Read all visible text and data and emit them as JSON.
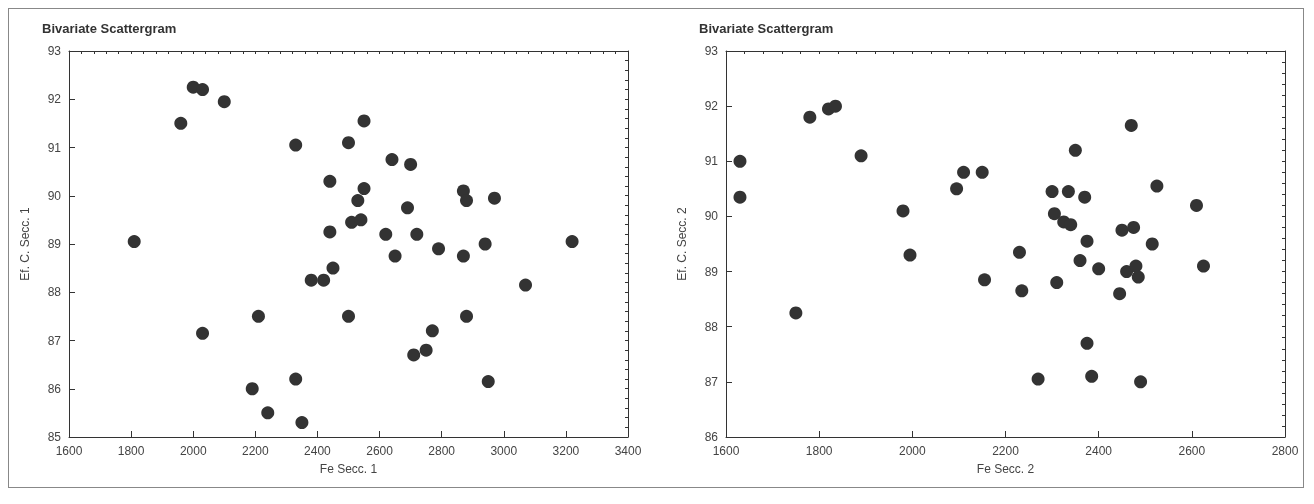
{
  "chart_data": [
    {
      "type": "scatter",
      "title": "Bivariate Scattergram",
      "xlabel": "Fe Secc. 1",
      "ylabel": "Ef. C. Secc. 1",
      "xlim": [
        1600,
        3400
      ],
      "xticks": [
        1600,
        1800,
        2000,
        2200,
        2400,
        2600,
        2800,
        3000,
        3200,
        3400
      ],
      "ylim": [
        85,
        93
      ],
      "yticks": [
        85,
        86,
        87,
        88,
        89,
        90,
        91,
        92,
        93
      ],
      "grid": false,
      "marker": "circle",
      "series": [
        {
          "color": "#333333",
          "x": [
            1810,
            1960,
            2000,
            2030,
            2100,
            2030,
            2210,
            2190,
            2240,
            2330,
            2330,
            2350,
            2380,
            2420,
            2440,
            2440,
            2450,
            2500,
            2500,
            2510,
            2530,
            2540,
            2550,
            2550,
            2620,
            2640,
            2650,
            2690,
            2700,
            2710,
            2720,
            2750,
            2770,
            2790,
            2870,
            2870,
            2880,
            2880,
            2940,
            2950,
            2970,
            3070,
            3220
          ],
          "values": [
            89.05,
            91.5,
            92.25,
            92.2,
            91.95,
            87.15,
            87.5,
            86.0,
            85.5,
            91.05,
            86.2,
            85.3,
            88.25,
            88.25,
            90.3,
            89.25,
            88.5,
            91.1,
            87.5,
            89.45,
            89.9,
            89.5,
            91.55,
            90.15,
            89.2,
            90.75,
            88.75,
            89.75,
            90.65,
            86.7,
            89.2,
            86.8,
            87.2,
            88.9,
            90.1,
            88.75,
            89.9,
            87.5,
            89.0,
            86.15,
            89.95,
            88.15,
            89.05
          ]
        }
      ]
    },
    {
      "type": "scatter",
      "title": "Bivariate Scattergram",
      "xlabel": "Fe Secc. 2",
      "ylabel": "Ef. C. Secc. 2",
      "xlim": [
        1600,
        2800
      ],
      "xticks": [
        1600,
        1800,
        2000,
        2200,
        2400,
        2600,
        2800
      ],
      "ylim": [
        86,
        93
      ],
      "yticks": [
        86,
        87,
        88,
        89,
        90,
        91,
        92,
        93
      ],
      "grid": false,
      "marker": "circle",
      "series": [
        {
          "color": "#333333",
          "x": [
            1630,
            1630,
            1750,
            1780,
            1820,
            1835,
            1890,
            1980,
            1995,
            2095,
            2110,
            2150,
            2155,
            2230,
            2235,
            2270,
            2300,
            2305,
            2310,
            2325,
            2335,
            2340,
            2350,
            2360,
            2370,
            2375,
            2375,
            2385,
            2400,
            2445,
            2450,
            2460,
            2470,
            2475,
            2480,
            2485,
            2490,
            2515,
            2525,
            2610,
            2625
          ],
          "values": [
            91.0,
            90.35,
            88.25,
            91.8,
            91.95,
            92.0,
            91.1,
            90.1,
            89.3,
            90.5,
            90.8,
            90.8,
            88.85,
            89.35,
            88.65,
            87.05,
            90.45,
            90.05,
            88.8,
            89.9,
            90.45,
            89.85,
            91.2,
            89.2,
            90.35,
            89.55,
            87.7,
            87.1,
            89.05,
            88.6,
            89.75,
            89.0,
            91.65,
            89.8,
            89.1,
            88.9,
            87.0,
            89.5,
            90.55,
            90.2,
            89.1
          ]
        }
      ]
    }
  ]
}
